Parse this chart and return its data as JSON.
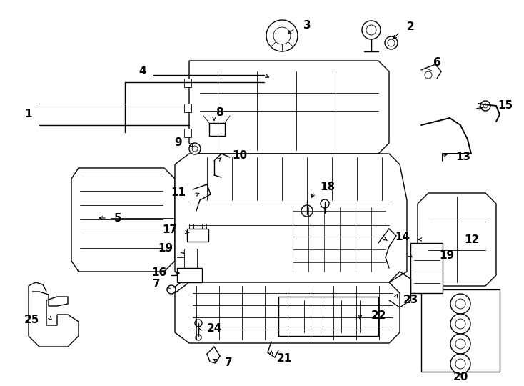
{
  "bg_color": "#ffffff",
  "line_color": "#000000",
  "figsize": [
    7.34,
    5.4
  ],
  "dpi": 100,
  "lw": 1.0,
  "lw_thin": 0.6,
  "lw_thick": 1.4
}
